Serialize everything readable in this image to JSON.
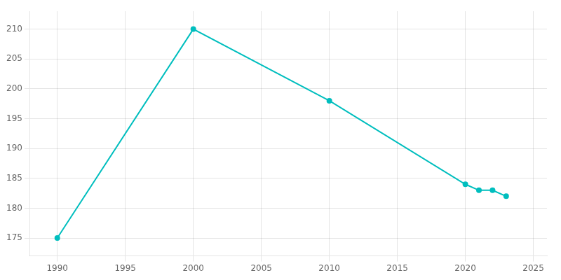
{
  "chart_data": {
    "type": "line",
    "x": [
      1990,
      2000,
      2010,
      2020,
      2021,
      2022,
      2023
    ],
    "values": [
      175,
      210,
      198,
      184,
      183,
      183,
      182
    ],
    "color": "#00BEBE",
    "marker": "circle",
    "xlim": [
      1988,
      2026
    ],
    "xticks": [
      1990,
      1995,
      2000,
      2005,
      2010,
      2015,
      2020,
      2025
    ],
    "ylim": [
      172,
      213
    ],
    "yticks": [
      175,
      180,
      185,
      190,
      195,
      200,
      205,
      210
    ],
    "grid": true
  }
}
